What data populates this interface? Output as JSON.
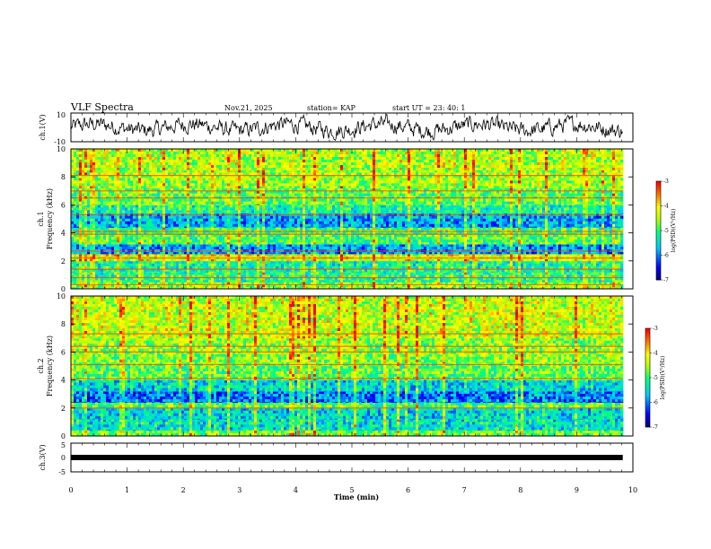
{
  "header": {
    "title": "VLF Spectra",
    "date": "Nov.21, 2025",
    "station": "station= KAP",
    "start_ut": "start  UT =   23: 40: 1"
  },
  "chart_data": [
    {
      "name": "ch1-waveform",
      "type": "line",
      "ylabel": "ch.1(V)",
      "ylim": [
        -10,
        10
      ],
      "y_ticks": [
        "10",
        "-10"
      ],
      "xlim": [
        0,
        10
      ],
      "data_xmax": 9.82
    },
    {
      "name": "ch1-spectrogram",
      "type": "heatmap",
      "ylabel": [
        "ch.1",
        "Frequency (kHz)"
      ],
      "ylim": [
        0,
        10
      ],
      "y_ticks": [
        "0",
        "2",
        "4",
        "6",
        "8",
        "10"
      ],
      "xlim": [
        0,
        10
      ],
      "data_xmax": 9.82,
      "colorbar": {
        "label": "log(PSD)(V²/Hz)",
        "ticks": [
          "-3",
          "-4",
          "-5",
          "-6",
          "-7"
        ],
        "range": [
          -7,
          -3
        ]
      },
      "bands": [
        {
          "from": 0.0,
          "to": 0.5,
          "level": -4.7
        },
        {
          "from": 0.5,
          "to": 1.2,
          "level": -5.2
        },
        {
          "from": 1.2,
          "to": 2.0,
          "level": -5.3
        },
        {
          "from": 2.0,
          "to": 2.5,
          "level": -4.3
        },
        {
          "from": 2.5,
          "to": 3.2,
          "level": -6.0
        },
        {
          "from": 3.2,
          "to": 3.9,
          "level": -5.0
        },
        {
          "from": 3.9,
          "to": 4.4,
          "level": -5.1
        },
        {
          "from": 4.4,
          "to": 5.4,
          "level": -5.9
        },
        {
          "from": 5.4,
          "to": 6.0,
          "level": -5.3
        },
        {
          "from": 6.0,
          "to": 7.2,
          "level": -4.9
        },
        {
          "from": 7.2,
          "to": 8.5,
          "level": -4.6
        },
        {
          "from": 8.5,
          "to": 10.0,
          "level": -4.5
        }
      ],
      "lines_khz": [
        0.3,
        0.8,
        1.4,
        2.2,
        2.7,
        3.9,
        4.1,
        5.3,
        6.5,
        7.0,
        8.1
      ]
    },
    {
      "name": "ch2-spectrogram",
      "type": "heatmap",
      "ylabel": [
        "ch.2",
        "Frequency (kHz)"
      ],
      "ylim": [
        0,
        10
      ],
      "y_ticks": [
        "0",
        "2",
        "4",
        "6",
        "8",
        "10"
      ],
      "xlim": [
        0,
        10
      ],
      "data_xmax": 9.82,
      "colorbar": {
        "label": "log(PSD)(V²/Hz)",
        "ticks": [
          "-3",
          "-4",
          "-5",
          "-6",
          "-7"
        ],
        "range": [
          -7,
          -3
        ]
      },
      "bands": [
        {
          "from": 0.0,
          "to": 0.4,
          "level": -4.8
        },
        {
          "from": 0.4,
          "to": 1.2,
          "level": -5.5
        },
        {
          "from": 1.2,
          "to": 2.0,
          "level": -5.6
        },
        {
          "from": 2.0,
          "to": 2.4,
          "level": -5.0
        },
        {
          "from": 2.4,
          "to": 3.2,
          "level": -6.1
        },
        {
          "from": 3.2,
          "to": 4.0,
          "level": -5.6
        },
        {
          "from": 4.0,
          "to": 5.2,
          "level": -4.9
        },
        {
          "from": 5.2,
          "to": 7.0,
          "level": -4.7
        },
        {
          "from": 7.0,
          "to": 10.0,
          "level": -4.4
        }
      ],
      "lines_khz": [
        2.0,
        4.1,
        5.1,
        6.0,
        6.4,
        7.3
      ]
    },
    {
      "name": "ch3-waveform",
      "type": "line",
      "ylabel": "ch.3(V)",
      "ylim": [
        -5,
        5
      ],
      "y_ticks": [
        "5",
        "0",
        "-5"
      ],
      "xlim": [
        0,
        10
      ],
      "data_xmax": 9.82,
      "level": 0
    },
    {
      "name": "time-axis",
      "xlabel": "Time  (min)",
      "x_ticks": [
        "0",
        "1",
        "2",
        "3",
        "4",
        "5",
        "6",
        "7",
        "8",
        "9",
        "10"
      ]
    }
  ]
}
